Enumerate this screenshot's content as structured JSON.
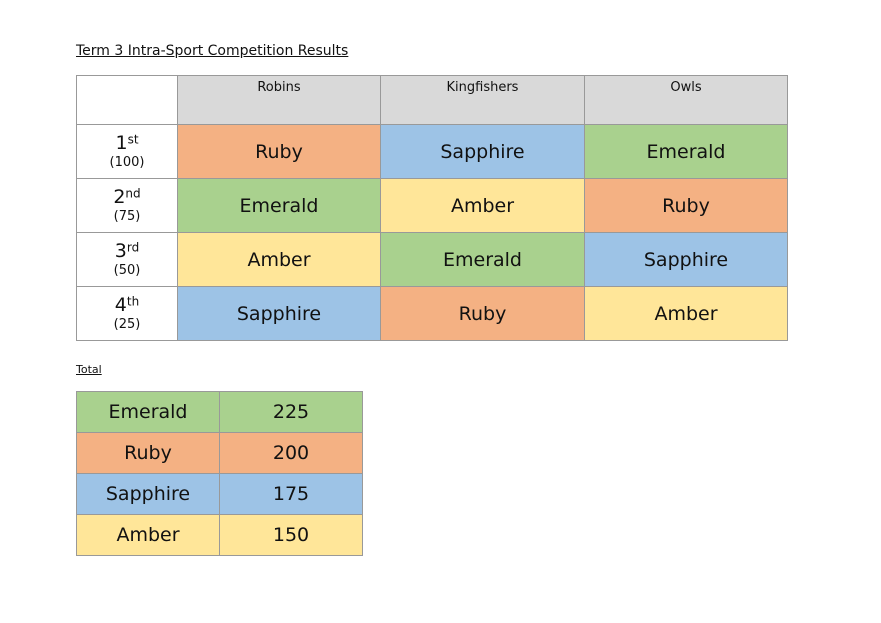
{
  "title": "Term 3 Intra-Sport Competition Results",
  "results": {
    "columns": [
      "Robins",
      "Kingfishers",
      "Owls"
    ],
    "header_color": "#d9d9d9",
    "rows": [
      {
        "place": "1",
        "suffix": "st",
        "points": "(100)",
        "cells": [
          {
            "text": "Ruby",
            "color": "#f4b183"
          },
          {
            "text": "Sapphire",
            "color": "#9dc3e6"
          },
          {
            "text": "Emerald",
            "color": "#a9d18e"
          }
        ]
      },
      {
        "place": "2",
        "suffix": "nd",
        "points": "(75)",
        "cells": [
          {
            "text": "Emerald",
            "color": "#a9d18e"
          },
          {
            "text": "Amber",
            "color": "#ffe699"
          },
          {
            "text": "Ruby",
            "color": "#f4b183"
          }
        ]
      },
      {
        "place": "3",
        "suffix": "rd",
        "points": "(50)",
        "cells": [
          {
            "text": "Amber",
            "color": "#ffe699"
          },
          {
            "text": "Emerald",
            "color": "#a9d18e"
          },
          {
            "text": "Sapphire",
            "color": "#9dc3e6"
          }
        ]
      },
      {
        "place": "4",
        "suffix": "th",
        "points": "(25)",
        "cells": [
          {
            "text": "Sapphire",
            "color": "#9dc3e6"
          },
          {
            "text": "Ruby",
            "color": "#f4b183"
          },
          {
            "text": "Amber",
            "color": "#ffe699"
          }
        ]
      }
    ]
  },
  "total": {
    "heading": "Total",
    "rows": [
      {
        "house": "Emerald",
        "points": 225,
        "color": "#a9d18e"
      },
      {
        "house": "Ruby",
        "points": 200,
        "color": "#f4b183"
      },
      {
        "house": "Sapphire",
        "points": 175,
        "color": "#9dc3e6"
      },
      {
        "house": "Amber",
        "points": 150,
        "color": "#ffe699"
      }
    ]
  }
}
